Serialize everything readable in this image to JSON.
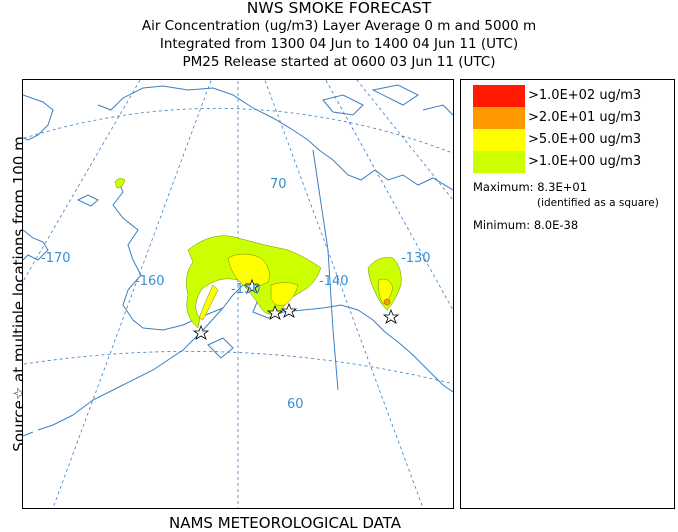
{
  "header": {
    "title": "NWS SMOKE FORECAST",
    "line2": "Air Concentration (ug/m3) Layer Average    0 m and  5000 m",
    "line3": "Integrated from 1300 04 Jun to 1400 04 Jun 11 (UTC)",
    "line4": "PM25 Release started at 0600 03 Jun 11 (UTC)"
  },
  "side_label": "Source☆ at multiple locations    from   100 m",
  "footer": "NAMS METEOROLOGICAL DATA",
  "map": {
    "lon_labels": [
      "-170",
      "-160",
      "-150",
      "-140",
      "-130"
    ],
    "lat_labels": [
      "70",
      "60"
    ],
    "colors": {
      "coast": "#3a7fc4",
      "grid": "#3a7fc4",
      "label": "#3a8fcf"
    }
  },
  "legend": {
    "items": [
      {
        "label": ">1.0E+02 ug/m3",
        "color": "#ff1a00"
      },
      {
        "label": ">2.0E+01 ug/m3",
        "color": "#ff9900"
      },
      {
        "label": ">5.0E+00 ug/m3",
        "color": "#ffff00"
      },
      {
        "label": ">1.0E+00 ug/m3",
        "color": "#ccff00"
      }
    ],
    "maximum_label": "Maximum: 8.3E+01",
    "maximum_note": "(identified as a square)",
    "minimum_label": "Minimum: 8.0E-38"
  }
}
